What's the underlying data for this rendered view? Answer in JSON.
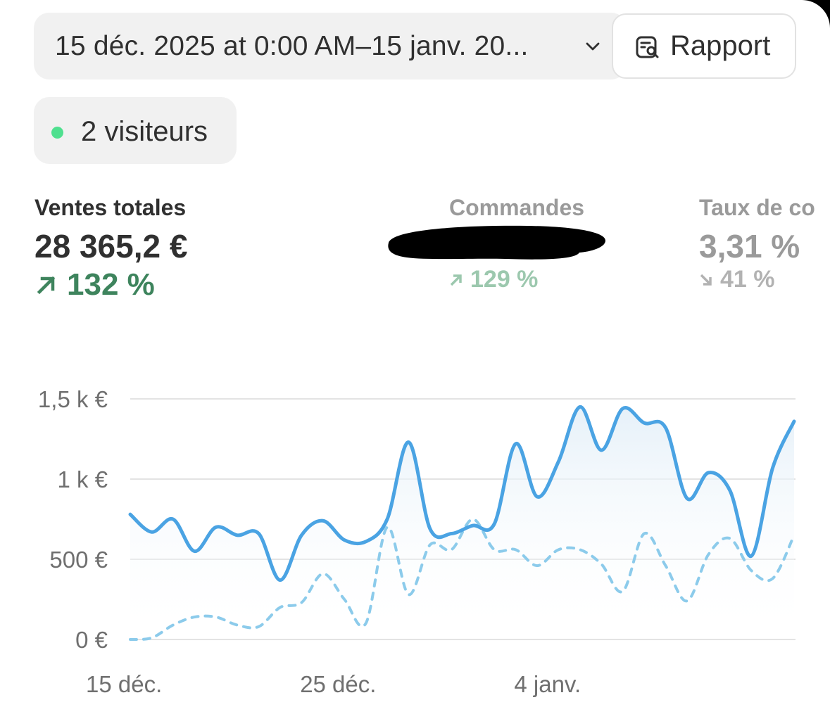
{
  "toolbar": {
    "date_range": "15 déc. 2025 at 0:00 AM–15 janv. 20...",
    "date_range_icon": "chevron-down-icon",
    "report_label": "Rapport",
    "report_icon": "report-search-icon"
  },
  "live": {
    "visitors_label": "2 visiteurs",
    "status_color": "#4fe08f"
  },
  "metrics": [
    {
      "label": "Ventes totales",
      "value": "28 365,2 €",
      "change": "132 %",
      "direction": "up",
      "active": true
    },
    {
      "label": "Commandes",
      "value": "",
      "change": "129 %",
      "direction": "up",
      "active": false
    },
    {
      "label": "Taux de co",
      "value": "3,31 %",
      "change": "41 %",
      "direction": "down",
      "active": false
    }
  ],
  "colors": {
    "positive": "#3e845d",
    "positive_muted": "#9cc8ae",
    "line_current": "#4aa3e3",
    "line_previous": "#8ccbeb",
    "grid": "#e3e3e3"
  },
  "chart_data": {
    "type": "line",
    "ylim": [
      0,
      1500
    ],
    "yticks": [
      "0 €",
      "500 €",
      "1 k €",
      "1,5 k €"
    ],
    "ytick_values": [
      0,
      500,
      1000,
      1500
    ],
    "xticks": [
      "15 déc.",
      "25 déc.",
      "4 janv."
    ],
    "xtick_index": [
      0,
      10,
      20
    ],
    "x": [
      "15 déc.",
      "16 déc.",
      "17 déc.",
      "18 déc.",
      "19 déc.",
      "20 déc.",
      "21 déc.",
      "22 déc.",
      "23 déc.",
      "24 déc.",
      "25 déc.",
      "26 déc.",
      "27 déc.",
      "28 déc.",
      "29 déc.",
      "30 déc.",
      "31 déc.",
      "1 janv.",
      "2 janv.",
      "3 janv.",
      "4 janv.",
      "5 janv.",
      "6 janv.",
      "7 janv.",
      "8 janv.",
      "9 janv.",
      "10 janv.",
      "11 janv.",
      "12 janv.",
      "13 janv.",
      "14 janv.",
      "15 janv."
    ],
    "series": [
      {
        "style": "solid",
        "values": [
          780,
          670,
          750,
          550,
          700,
          650,
          660,
          370,
          650,
          740,
          620,
          610,
          750,
          1230,
          690,
          660,
          710,
          720,
          1220,
          890,
          1110,
          1450,
          1180,
          1440,
          1350,
          1320,
          880,
          1040,
          930,
          520,
          1070,
          1360
        ]
      },
      {
        "style": "dashed",
        "values": [
          0,
          10,
          90,
          140,
          140,
          90,
          80,
          200,
          230,
          410,
          250,
          100,
          700,
          280,
          590,
          560,
          750,
          560,
          560,
          460,
          560,
          560,
          470,
          300,
          660,
          460,
          240,
          530,
          630,
          430,
          380,
          650
        ]
      }
    ]
  }
}
